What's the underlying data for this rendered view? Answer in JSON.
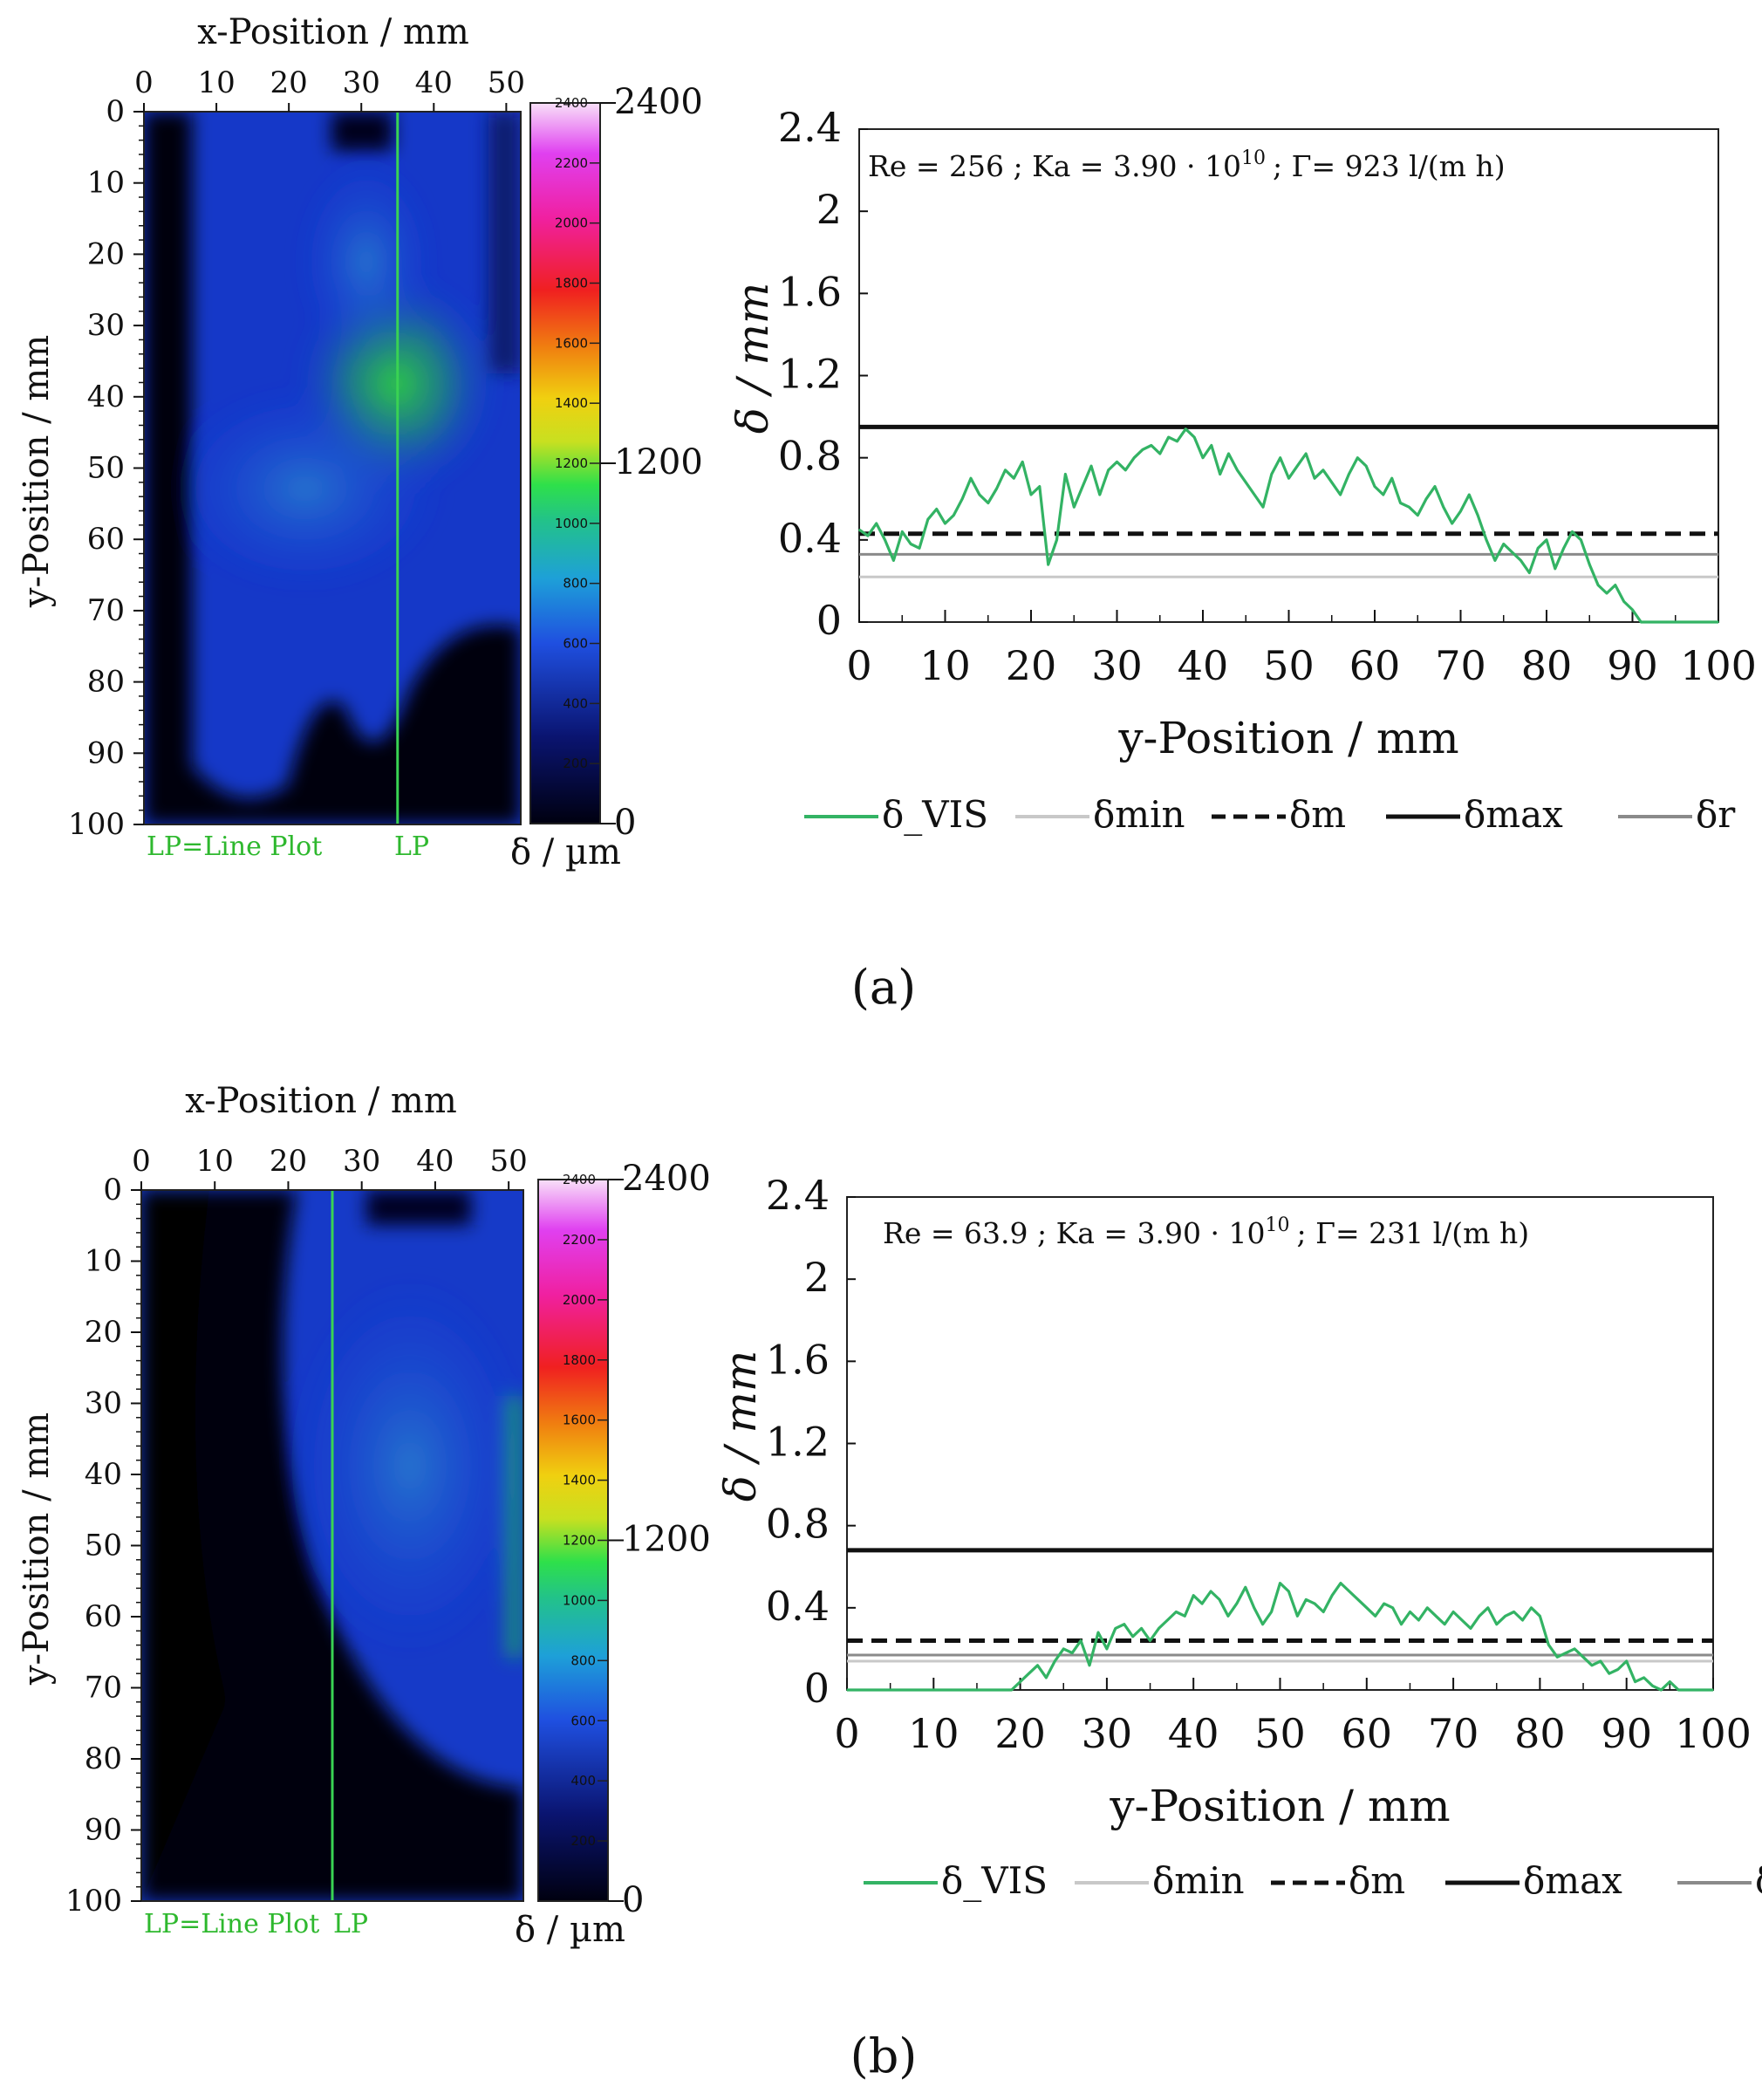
{
  "colors": {
    "vis": "#33b364",
    "min": "#c8c8c8",
    "m": "#111111",
    "max": "#111111",
    "r": "#8a8a8a",
    "lp": "#39d353",
    "label_green": "#2eb82e"
  },
  "colorbar": {
    "ticks": [
      "2400",
      "2200",
      "2000",
      "1800",
      "1600",
      "1400",
      "1200",
      "1000",
      "800",
      "600",
      "400",
      "200"
    ],
    "major": [
      "2400",
      "1200",
      "0"
    ],
    "label": "δ / µm"
  },
  "map_axes": {
    "xlabel": "x-Position / mm",
    "ylabel": "y-Position / mm",
    "xticks": [
      "0",
      "10",
      "20",
      "30",
      "40",
      "50"
    ],
    "yticks": [
      "0",
      "10",
      "20",
      "30",
      "40",
      "50",
      "60",
      "70",
      "80",
      "90",
      "100"
    ],
    "lp_caption": "LP=Line Plot",
    "lp_short": "LP"
  },
  "legend": [
    "δ_VIS",
    "δmin",
    "δm",
    "δmax",
    "δr"
  ],
  "panels": [
    {
      "caption": "(a)",
      "lp_x": 35,
      "annotation": {
        "re": "Re = 256 ;",
        "ka": "Ka = 3.90 · 10",
        "ka_exp": "10",
        "gamma": "; Γ= 923 l/(m h)"
      }
    },
    {
      "caption": "(b)",
      "lp_x": 26,
      "annotation": {
        "re": "Re = 63.9 ;",
        "ka": "Ka = 3.90 · 10",
        "ka_exp": "10",
        "gamma": "; Γ= 231 l/(m h)"
      }
    }
  ],
  "chart_data": [
    {
      "type": "line",
      "title": "Re = 256 ; Ka = 3.90 · 10^10 ; Γ= 923 l/(m h)",
      "xlabel": "y-Position / mm",
      "ylabel": "δ / mm",
      "xlim": [
        0,
        100
      ],
      "ylim": [
        0,
        2.4
      ],
      "xticks": [
        "0",
        "10",
        "20",
        "30",
        "40",
        "50",
        "60",
        "70",
        "80",
        "90",
        "100"
      ],
      "yticks": [
        "0",
        "0.4",
        "0.8",
        "1.2",
        "1.6",
        "2",
        "2.4"
      ],
      "hlines": {
        "δmin": 0.22,
        "δm": 0.43,
        "δmax": 0.95,
        "δr": 0.33
      },
      "series": [
        {
          "name": "δ_VIS",
          "x": [
            0,
            1,
            2,
            3,
            4,
            5,
            6,
            7,
            8,
            9,
            10,
            11,
            12,
            13,
            14,
            15,
            16,
            17,
            18,
            19,
            20,
            21,
            22,
            23,
            24,
            25,
            26,
            27,
            28,
            29,
            30,
            31,
            32,
            33,
            34,
            35,
            36,
            37,
            38,
            39,
            40,
            41,
            42,
            43,
            44,
            45,
            46,
            47,
            48,
            49,
            50,
            51,
            52,
            53,
            54,
            55,
            56,
            57,
            58,
            59,
            60,
            61,
            62,
            63,
            64,
            65,
            66,
            67,
            68,
            69,
            70,
            71,
            72,
            73,
            74,
            75,
            76,
            77,
            78,
            79,
            80,
            81,
            82,
            83,
            84,
            85,
            86,
            87,
            88,
            89,
            90,
            91,
            92,
            93,
            94,
            95,
            100
          ],
          "values": [
            0.45,
            0.42,
            0.48,
            0.4,
            0.3,
            0.44,
            0.38,
            0.36,
            0.5,
            0.55,
            0.48,
            0.52,
            0.6,
            0.7,
            0.62,
            0.58,
            0.65,
            0.74,
            0.7,
            0.78,
            0.62,
            0.66,
            0.28,
            0.4,
            0.72,
            0.56,
            0.66,
            0.76,
            0.62,
            0.74,
            0.78,
            0.74,
            0.8,
            0.84,
            0.86,
            0.82,
            0.9,
            0.88,
            0.94,
            0.9,
            0.8,
            0.86,
            0.72,
            0.82,
            0.74,
            0.68,
            0.62,
            0.56,
            0.72,
            0.8,
            0.7,
            0.76,
            0.82,
            0.7,
            0.74,
            0.68,
            0.62,
            0.72,
            0.8,
            0.76,
            0.66,
            0.62,
            0.7,
            0.58,
            0.56,
            0.52,
            0.6,
            0.66,
            0.56,
            0.48,
            0.54,
            0.62,
            0.52,
            0.4,
            0.3,
            0.38,
            0.34,
            0.3,
            0.24,
            0.36,
            0.4,
            0.26,
            0.36,
            0.44,
            0.4,
            0.28,
            0.18,
            0.14,
            0.18,
            0.1,
            0.06,
            0.0,
            0.0,
            0.0,
            0.0,
            0.0,
            0.0
          ]
        }
      ]
    },
    {
      "type": "line",
      "title": "Re = 63.9 ; Ka = 3.90 · 10^10 ; Γ= 231 l/(m h)",
      "xlabel": "y-Position / mm",
      "ylabel": "δ / mm",
      "xlim": [
        0,
        100
      ],
      "ylim": [
        0,
        2.4
      ],
      "xticks": [
        "0",
        "10",
        "20",
        "30",
        "40",
        "50",
        "60",
        "70",
        "80",
        "90",
        "100"
      ],
      "yticks": [
        "0",
        "0.4",
        "0.8",
        "1.2",
        "1.6",
        "2",
        "2.4"
      ],
      "hlines": {
        "δmin": 0.14,
        "δm": 0.24,
        "δmax": 0.68,
        "δr": 0.17
      },
      "series": [
        {
          "name": "δ_VIS",
          "x": [
            0,
            2,
            5,
            8,
            10,
            12,
            15,
            18,
            19,
            20,
            21,
            22,
            23,
            24,
            25,
            26,
            27,
            28,
            29,
            30,
            31,
            32,
            33,
            34,
            35,
            36,
            37,
            38,
            39,
            40,
            41,
            42,
            43,
            44,
            45,
            46,
            47,
            48,
            49,
            50,
            51,
            52,
            53,
            54,
            55,
            56,
            57,
            58,
            59,
            60,
            61,
            62,
            63,
            64,
            65,
            66,
            67,
            68,
            69,
            70,
            71,
            72,
            73,
            74,
            75,
            76,
            77,
            78,
            79,
            80,
            81,
            82,
            83,
            84,
            85,
            86,
            87,
            88,
            89,
            90,
            91,
            92,
            93,
            94,
            95,
            96,
            97,
            100
          ],
          "values": [
            0,
            0,
            0,
            0,
            0,
            0,
            0,
            0,
            0,
            0.04,
            0.08,
            0.12,
            0.06,
            0.14,
            0.2,
            0.18,
            0.24,
            0.12,
            0.28,
            0.2,
            0.3,
            0.32,
            0.26,
            0.3,
            0.24,
            0.3,
            0.34,
            0.38,
            0.36,
            0.46,
            0.42,
            0.48,
            0.44,
            0.36,
            0.42,
            0.5,
            0.4,
            0.32,
            0.38,
            0.52,
            0.48,
            0.36,
            0.44,
            0.42,
            0.38,
            0.46,
            0.52,
            0.48,
            0.44,
            0.4,
            0.36,
            0.42,
            0.4,
            0.32,
            0.38,
            0.34,
            0.4,
            0.36,
            0.32,
            0.38,
            0.34,
            0.3,
            0.36,
            0.4,
            0.32,
            0.36,
            0.38,
            0.34,
            0.4,
            0.36,
            0.22,
            0.16,
            0.18,
            0.2,
            0.16,
            0.12,
            0.14,
            0.08,
            0.1,
            0.14,
            0.04,
            0.06,
            0.02,
            0.0,
            0.04,
            0.0,
            0.0,
            0.0
          ]
        }
      ]
    }
  ]
}
